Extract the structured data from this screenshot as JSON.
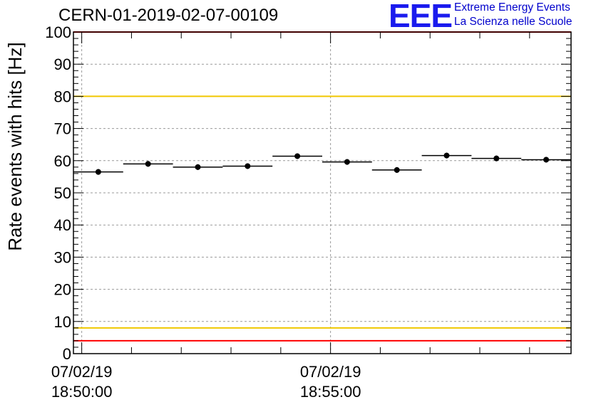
{
  "header": {
    "title": "CERN-01-2019-02-07-00109"
  },
  "logo": {
    "mark": "EEE",
    "line1": "Extreme Energy Events",
    "line2": "La Scienza nelle Scuole"
  },
  "colors": {
    "limit_red": "#ff0000",
    "limit_yellow": "#f0c800",
    "points": "#000000",
    "grid": "#999999",
    "logo_blue": "#1a1aee"
  },
  "chart_data": {
    "type": "scatter",
    "title": "CERN-01-2019-02-07-00109",
    "ylabel": "Rate events with hits [Hz]",
    "xlabel": "",
    "ylim": [
      0,
      100
    ],
    "yticks": [
      0,
      10,
      20,
      30,
      40,
      50,
      60,
      70,
      80,
      90,
      100
    ],
    "xlim": [
      "2019-02-07 18:49:50",
      "2019-02-07 18:59:50"
    ],
    "xticks": [
      {
        "date": "07/02/19",
        "time": "18:50:00",
        "t": "2019-02-07 18:50:00"
      },
      {
        "date": "07/02/19",
        "time": "18:55:00",
        "t": "2019-02-07 18:55:00"
      }
    ],
    "grid": true,
    "bin_width_s": 60,
    "points": [
      {
        "t": "2019-02-07 18:50:20",
        "y": 56.5
      },
      {
        "t": "2019-02-07 18:51:20",
        "y": 59.0
      },
      {
        "t": "2019-02-07 18:52:20",
        "y": 58.0
      },
      {
        "t": "2019-02-07 18:53:20",
        "y": 58.3
      },
      {
        "t": "2019-02-07 18:54:20",
        "y": 61.4
      },
      {
        "t": "2019-02-07 18:55:20",
        "y": 59.6
      },
      {
        "t": "2019-02-07 18:56:20",
        "y": 57.1
      },
      {
        "t": "2019-02-07 18:57:20",
        "y": 61.6
      },
      {
        "t": "2019-02-07 18:58:20",
        "y": 60.7
      },
      {
        "t": "2019-02-07 18:59:20",
        "y": 60.3
      }
    ],
    "reference_lines": [
      {
        "y": 100,
        "color": "#ff0000"
      },
      {
        "y": 80,
        "color": "#f0c800"
      },
      {
        "y": 8,
        "color": "#f0c800"
      },
      {
        "y": 4,
        "color": "#ff0000"
      }
    ]
  }
}
